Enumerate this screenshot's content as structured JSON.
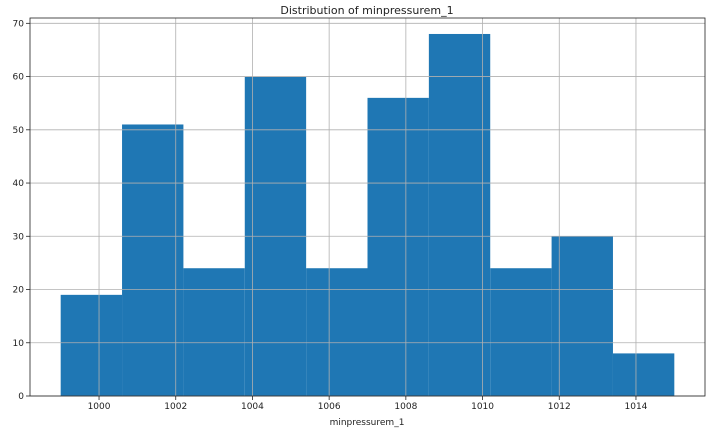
{
  "chart_data": {
    "type": "bar",
    "title": "Distribution of minpressurem_1",
    "xlabel": "minpressurem_1",
    "ylabel": "",
    "bins": [
      {
        "start": 999.0,
        "end": 1000.6,
        "count": 19
      },
      {
        "start": 1000.6,
        "end": 1002.2,
        "count": 51
      },
      {
        "start": 1002.2,
        "end": 1003.8,
        "count": 24
      },
      {
        "start": 1003.8,
        "end": 1005.4,
        "count": 60
      },
      {
        "start": 1005.4,
        "end": 1007.0,
        "count": 24
      },
      {
        "start": 1007.0,
        "end": 1008.6,
        "count": 56
      },
      {
        "start": 1008.6,
        "end": 1010.2,
        "count": 68
      },
      {
        "start": 1010.2,
        "end": 1011.8,
        "count": 24
      },
      {
        "start": 1011.8,
        "end": 1013.4,
        "count": 30
      },
      {
        "start": 1013.4,
        "end": 1015.0,
        "count": 8
      }
    ],
    "xlim": [
      998.2,
      1015.8
    ],
    "ylim": [
      0,
      71
    ],
    "xticks": [
      1000,
      1002,
      1004,
      1006,
      1008,
      1010,
      1012,
      1014
    ],
    "yticks": [
      0,
      10,
      20,
      30,
      40,
      50,
      60,
      70
    ],
    "grid": true,
    "legend": "none",
    "bar_color": "#1f77b4",
    "grid_color": "#b0b0b0"
  }
}
